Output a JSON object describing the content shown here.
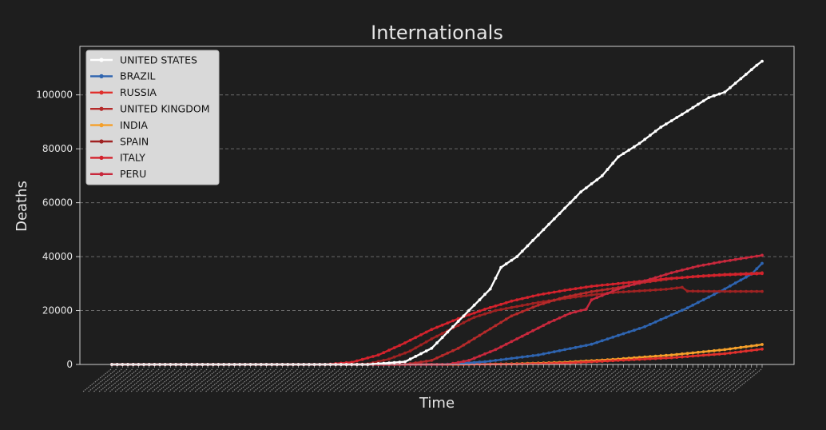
{
  "chart_data": {
    "type": "line",
    "title": "Internationals",
    "xlabel": "Time",
    "ylabel": "Deaths",
    "ylim": [
      0,
      118000
    ],
    "yticks": [
      0,
      20000,
      40000,
      60000,
      80000,
      100000
    ],
    "n_points": 123,
    "grid": "horizontal dashed",
    "legend_position": "top-left",
    "colors": {
      "background": "#1e1e1e",
      "frame": "#cfcfcf",
      "text": "#e6e6e6",
      "grid": "#6a6a6a",
      "legend_bg": "#d9d9d9"
    },
    "series": [
      {
        "name": "UNITED STATES",
        "color": "#ffffff",
        "keypoints": [
          [
            0,
            0
          ],
          [
            48,
            0
          ],
          [
            55,
            1000
          ],
          [
            60,
            6000
          ],
          [
            64,
            14000
          ],
          [
            68,
            22000
          ],
          [
            71,
            28000
          ],
          [
            73,
            36000
          ],
          [
            76,
            40000
          ],
          [
            80,
            48000
          ],
          [
            84,
            56000
          ],
          [
            88,
            64000
          ],
          [
            92,
            70000
          ],
          [
            95,
            77000
          ],
          [
            99,
            82000
          ],
          [
            103,
            88000
          ],
          [
            108,
            94000
          ],
          [
            112,
            99000
          ],
          [
            115,
            101000
          ],
          [
            118,
            106000
          ],
          [
            121,
            111000
          ],
          [
            122,
            112500
          ]
        ]
      },
      {
        "name": "BRAZIL",
        "color": "#2e64b0",
        "keypoints": [
          [
            0,
            0
          ],
          [
            62,
            0
          ],
          [
            70,
            1000
          ],
          [
            80,
            3500
          ],
          [
            90,
            7500
          ],
          [
            100,
            14000
          ],
          [
            108,
            21000
          ],
          [
            115,
            28000
          ],
          [
            120,
            33500
          ],
          [
            122,
            37500
          ]
        ]
      },
      {
        "name": "RUSSIA",
        "color": "#e0302d",
        "keypoints": [
          [
            0,
            0
          ],
          [
            60,
            0
          ],
          [
            75,
            100
          ],
          [
            85,
            500
          ],
          [
            95,
            1500
          ],
          [
            105,
            2500
          ],
          [
            115,
            4000
          ],
          [
            122,
            5700
          ]
        ]
      },
      {
        "name": "UNITED KINGDOM",
        "color": "#b52a2a",
        "keypoints": [
          [
            0,
            0
          ],
          [
            55,
            0
          ],
          [
            60,
            1500
          ],
          [
            65,
            6000
          ],
          [
            70,
            12000
          ],
          [
            75,
            18000
          ],
          [
            80,
            22000
          ],
          [
            85,
            25000
          ],
          [
            90,
            27000
          ],
          [
            95,
            28500
          ],
          [
            100,
            30500
          ],
          [
            105,
            31800
          ],
          [
            110,
            32800
          ],
          [
            115,
            33400
          ],
          [
            122,
            34000
          ]
        ]
      },
      {
        "name": "INDIA",
        "color": "#f5a02a",
        "keypoints": [
          [
            0,
            0
          ],
          [
            65,
            0
          ],
          [
            75,
            200
          ],
          [
            85,
            800
          ],
          [
            95,
            2000
          ],
          [
            105,
            3500
          ],
          [
            115,
            5500
          ],
          [
            122,
            7400
          ]
        ]
      },
      {
        "name": "SPAIN",
        "color": "#a02222",
        "keypoints": [
          [
            0,
            0
          ],
          [
            43,
            0
          ],
          [
            48,
            200
          ],
          [
            52,
            2000
          ],
          [
            56,
            5000
          ],
          [
            60,
            9500
          ],
          [
            64,
            13500
          ],
          [
            68,
            17500
          ],
          [
            72,
            20000
          ],
          [
            76,
            21500
          ],
          [
            80,
            23000
          ],
          [
            85,
            24500
          ],
          [
            90,
            25800
          ],
          [
            95,
            26800
          ],
          [
            100,
            27400
          ],
          [
            104,
            27900
          ],
          [
            107,
            28600
          ],
          [
            108,
            27200
          ],
          [
            115,
            27100
          ],
          [
            122,
            27100
          ]
        ]
      },
      {
        "name": "ITALY",
        "color": "#d4222c",
        "keypoints": [
          [
            0,
            0
          ],
          [
            40,
            0
          ],
          [
            45,
            800
          ],
          [
            50,
            3500
          ],
          [
            55,
            8000
          ],
          [
            60,
            13000
          ],
          [
            65,
            17000
          ],
          [
            70,
            20500
          ],
          [
            75,
            23500
          ],
          [
            80,
            25800
          ],
          [
            85,
            27500
          ],
          [
            90,
            29000
          ],
          [
            95,
            30000
          ],
          [
            100,
            31000
          ],
          [
            105,
            32000
          ],
          [
            110,
            32600
          ],
          [
            115,
            33200
          ],
          [
            122,
            33700
          ]
        ]
      },
      {
        "name": "PERU",
        "color": "#c8283c",
        "keypoints": [
          [
            0,
            0
          ],
          [
            63,
            0
          ],
          [
            67,
            1500
          ],
          [
            72,
            5500
          ],
          [
            77,
            10500
          ],
          [
            82,
            15500
          ],
          [
            86,
            19000
          ],
          [
            89,
            20500
          ],
          [
            90,
            24000
          ],
          [
            95,
            28000
          ],
          [
            100,
            31000
          ],
          [
            105,
            34000
          ],
          [
            110,
            36500
          ],
          [
            115,
            38300
          ],
          [
            122,
            40500
          ]
        ]
      }
    ]
  }
}
